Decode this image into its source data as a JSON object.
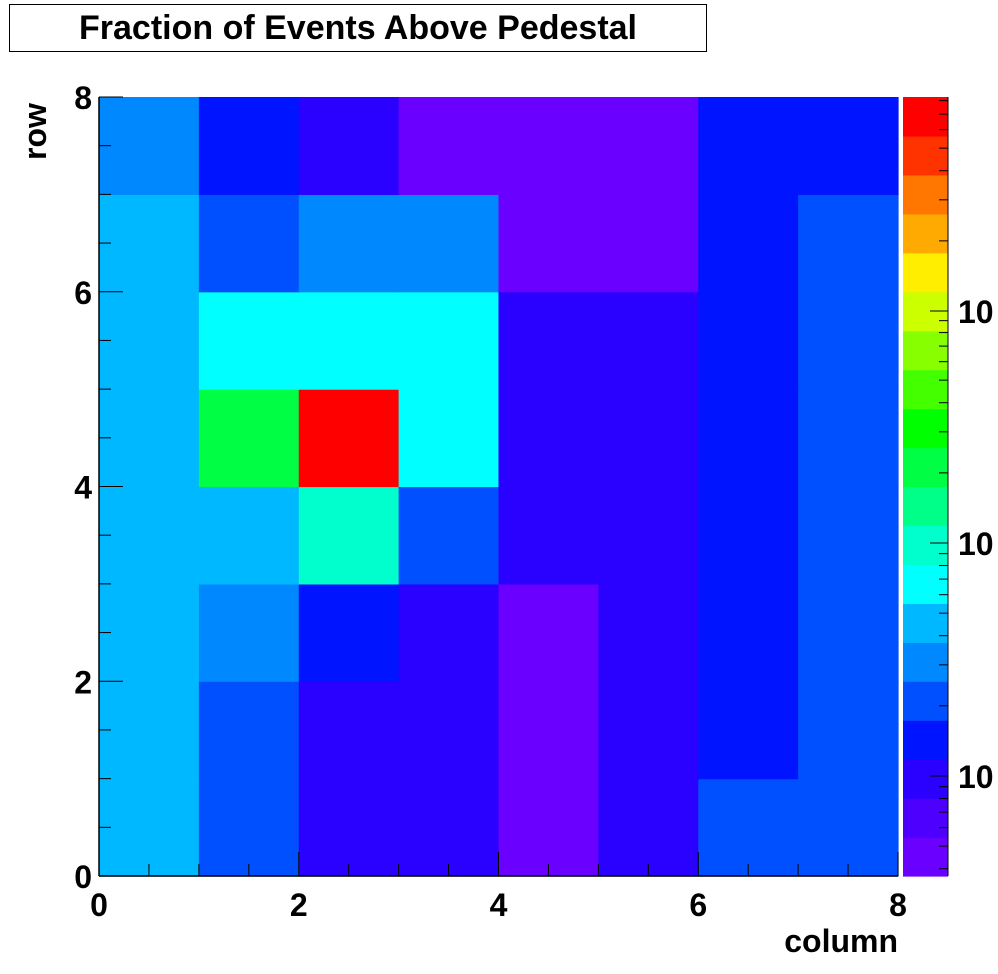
{
  "chart_data": {
    "type": "heatmap",
    "title": "Fraction of Events Above Pedestal",
    "xlabel": "column",
    "ylabel": "row",
    "xlim": [
      0,
      8
    ],
    "ylim": [
      0,
      8
    ],
    "x_ticks": [
      "0",
      "2",
      "4",
      "6",
      "8"
    ],
    "y_ticks": [
      "0",
      "2",
      "4",
      "6",
      "8"
    ],
    "colorbar_tick_labels": [
      "10",
      "10",
      "10"
    ],
    "colorbar_levels": 20,
    "z_scale": "log",
    "grid": false,
    "palette": [
      "#6a00ff",
      "#4e00ff",
      "#2a00ff",
      "#0014ff",
      "#0050ff",
      "#0088ff",
      "#00b8ff",
      "#00ffff",
      "#00ffcc",
      "#00ff88",
      "#00ff44",
      "#00ff00",
      "#44ff00",
      "#88ff00",
      "#ccff00",
      "#ffee00",
      "#ffaa00",
      "#ff7700",
      "#ff3300",
      "#ff0000"
    ],
    "cell_levels_note": "rows listed from row 0 (bottom) to row 7 (top); each row lists columns 0..7; values are color level indices into palette",
    "cells": [
      [
        6,
        4,
        2,
        2,
        0,
        2,
        4,
        4
      ],
      [
        6,
        4,
        2,
        2,
        0,
        2,
        3,
        4
      ],
      [
        6,
        5,
        3,
        2,
        0,
        2,
        3,
        4
      ],
      [
        6,
        6,
        8,
        4,
        2,
        2,
        3,
        4
      ],
      [
        6,
        10,
        19,
        7,
        2,
        2,
        3,
        4
      ],
      [
        6,
        7,
        7,
        7,
        2,
        2,
        3,
        4
      ],
      [
        6,
        4,
        5,
        5,
        0,
        0,
        3,
        4
      ],
      [
        5,
        3,
        2,
        0,
        0,
        0,
        3,
        3
      ]
    ]
  }
}
